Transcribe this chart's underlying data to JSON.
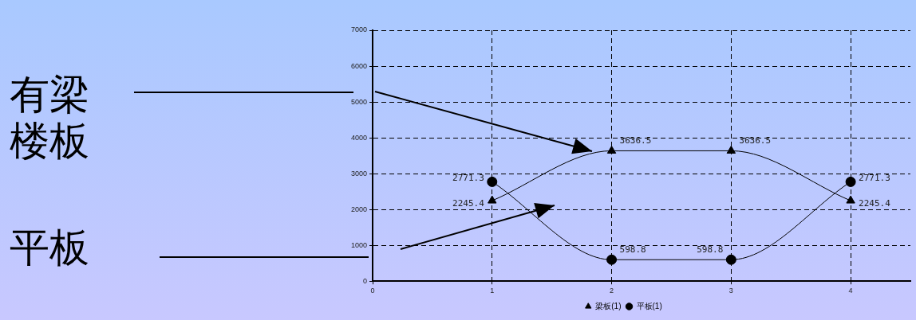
{
  "chart_data": {
    "type": "line",
    "annotations": [
      "有梁楼板",
      "平板"
    ],
    "xlim": [
      0,
      4.5
    ],
    "xticks": [
      0,
      1,
      2,
      3,
      4
    ],
    "ylim": [
      0,
      7000
    ],
    "yticks": [
      0,
      1000,
      2000,
      3000,
      4000,
      5000,
      6000,
      7000
    ],
    "x": [
      1,
      2,
      3,
      4
    ],
    "series": [
      {
        "name": "梁板(1)",
        "color": "#000000",
        "marker": "triangle",
        "values": [
          2245.4,
          3636.5,
          3636.5,
          2245.4
        ]
      },
      {
        "name": "平板(1)",
        "color": "#000000",
        "marker": "circle",
        "values": [
          2771.3,
          598.8,
          598.8,
          2771.3
        ]
      }
    ],
    "data_labels": true,
    "grid": true,
    "legend": "bottom",
    "line_style": "solid"
  }
}
